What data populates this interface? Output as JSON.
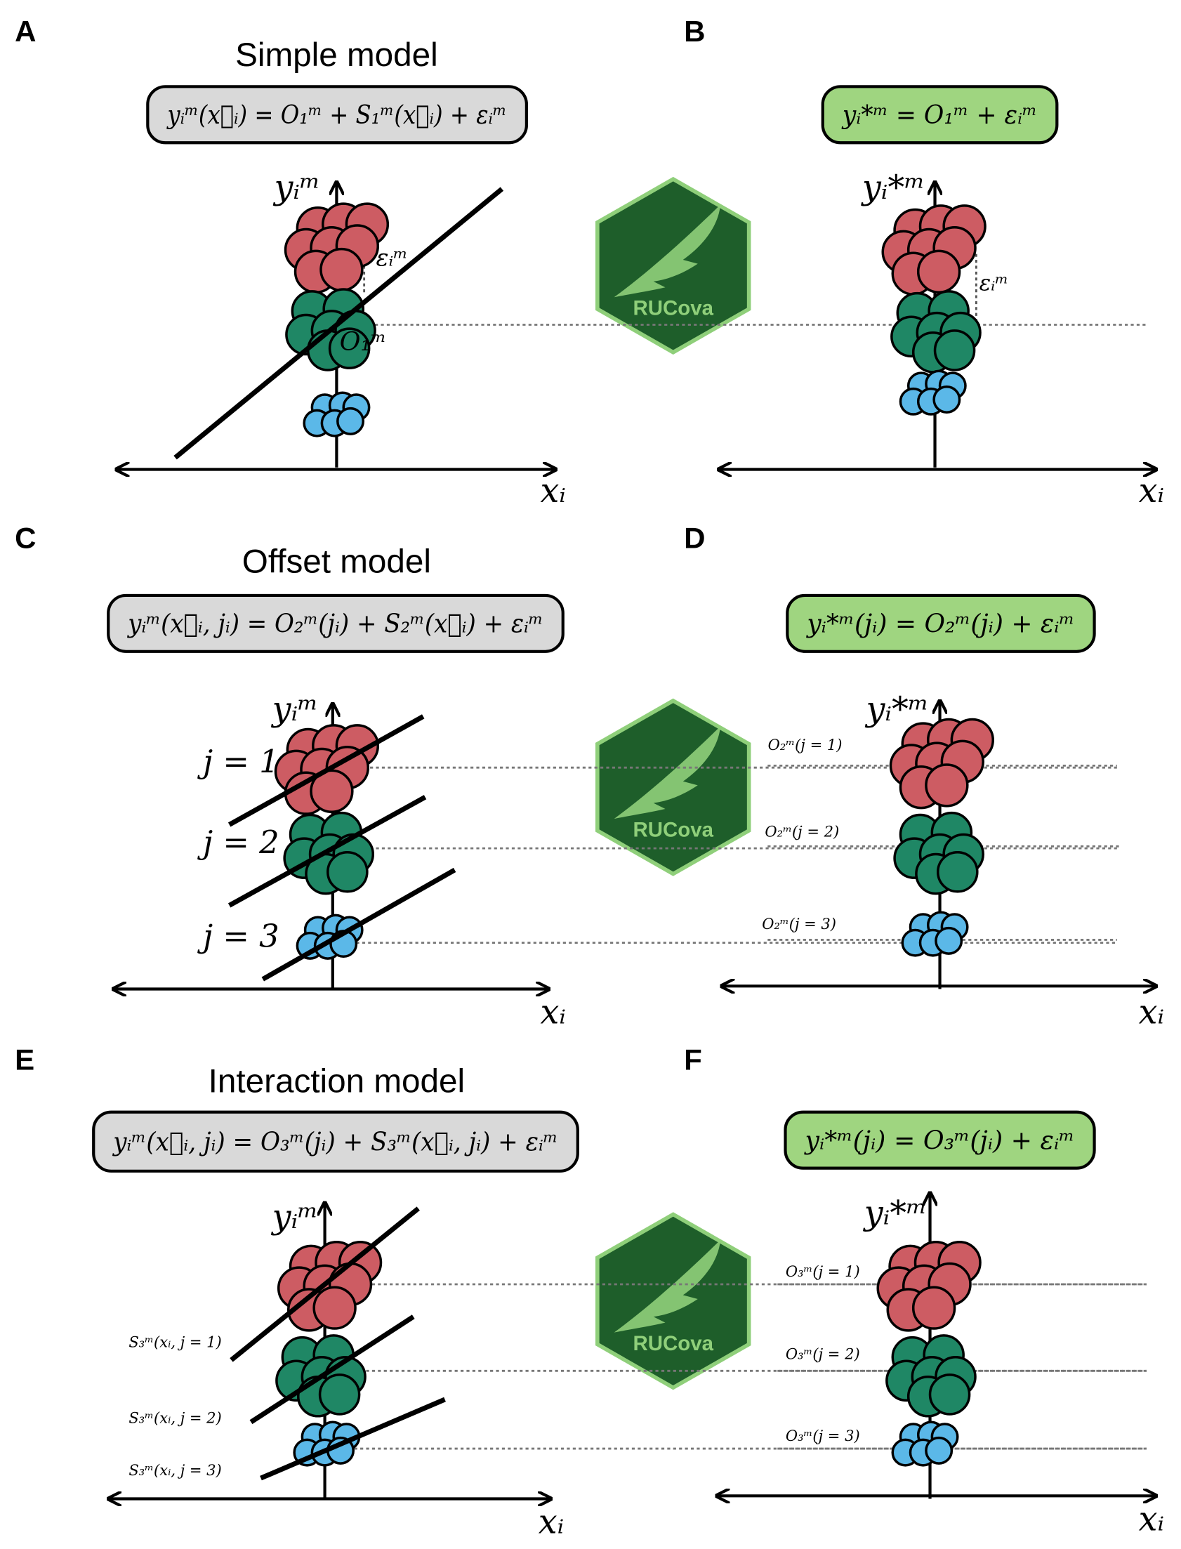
{
  "logo": "RUCova",
  "panels": [
    {
      "letter": "A",
      "title": "Simple model",
      "formula": "yᵢᵐ(x⃗ᵢ) = O₁ᵐ + S₁ᵐ(x⃗ᵢ) + εᵢᵐ",
      "y_label": "yᵢᵐ",
      "x_label": "xᵢ",
      "annotations": [
        "εᵢᵐ",
        "O₁ᵐ"
      ]
    },
    {
      "letter": "B",
      "formula": "yᵢ*ᵐ = O₁ᵐ + εᵢᵐ",
      "y_label": "yᵢ*ᵐ",
      "x_label": "xᵢ",
      "annotations": [
        "εᵢᵐ"
      ]
    },
    {
      "letter": "C",
      "title": "Offset model",
      "formula": "yᵢᵐ(x⃗ᵢ, jᵢ) = O₂ᵐ(jᵢ) + S₂ᵐ(x⃗ᵢ) + εᵢᵐ",
      "y_label": "yᵢᵐ",
      "x_label": "xᵢ",
      "annotations": [
        "j = 1",
        "j = 2",
        "j = 3"
      ]
    },
    {
      "letter": "D",
      "formula": "yᵢ*ᵐ(jᵢ) = O₂ᵐ(jᵢ) + εᵢᵐ",
      "y_label": "yᵢ*ᵐ",
      "x_label": "xᵢ",
      "annotations": [
        "O₂ᵐ(j = 1)",
        "O₂ᵐ(j = 2)",
        "O₂ᵐ(j = 3)"
      ]
    },
    {
      "letter": "E",
      "title": "Interaction model",
      "formula": "yᵢᵐ(x⃗ᵢ, jᵢ) = O₃ᵐ(jᵢ) + S₃ᵐ(x⃗ᵢ, jᵢ) + εᵢᵐ",
      "y_label": "yᵢᵐ",
      "x_label": "xᵢ",
      "annotations": [
        "S₃ᵐ(xᵢ, j = 1)",
        "S₃ᵐ(xᵢ, j = 2)",
        "S₃ᵐ(xᵢ, j = 3)"
      ]
    },
    {
      "letter": "F",
      "formula": "yᵢ*ᵐ(jᵢ) = O₃ᵐ(jᵢ) + εᵢᵐ",
      "y_label": "yᵢ*ᵐ",
      "x_label": "xᵢ",
      "annotations": [
        "O₃ᵐ(j = 1)",
        "O₃ᵐ(j = 2)",
        "O₃ᵐ(j = 3)"
      ]
    }
  ]
}
